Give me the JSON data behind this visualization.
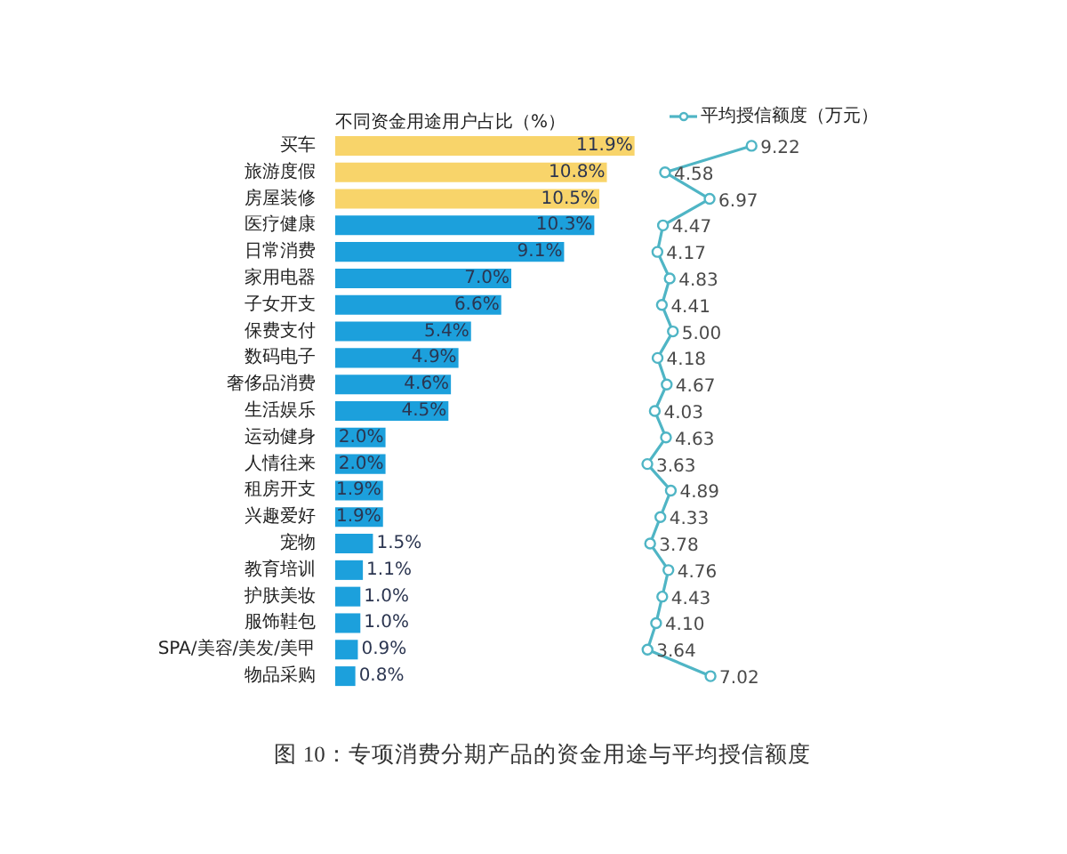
{
  "chart_data": [
    {
      "type": "bar",
      "orientation": "horizontal",
      "title": "不同资金用途用户占比（%）",
      "categories": [
        "买车",
        "旅游度假",
        "房屋装修",
        "医疗健康",
        "日常消费",
        "家用电器",
        "子女开支",
        "保费支付",
        "数码电子",
        "奢侈品消费",
        "生活娱乐",
        "运动健身",
        "人情往来",
        "租房开支",
        "兴趣爱好",
        "宠物",
        "教育培训",
        "护肤美妆",
        "服饰鞋包",
        "SPA/美容/美发/美甲",
        "物品采购"
      ],
      "values": [
        11.9,
        10.8,
        10.5,
        10.3,
        9.1,
        7.0,
        6.6,
        5.4,
        4.9,
        4.6,
        4.5,
        2.0,
        2.0,
        1.9,
        1.9,
        1.5,
        1.1,
        1.0,
        1.0,
        0.9,
        0.8
      ],
      "colors": [
        "#f8d46a",
        "#f8d46a",
        "#f8d46a",
        "#1ca0dc",
        "#1ca0dc",
        "#1ca0dc",
        "#1ca0dc",
        "#1ca0dc",
        "#1ca0dc",
        "#1ca0dc",
        "#1ca0dc",
        "#1ca0dc",
        "#1ca0dc",
        "#1ca0dc",
        "#1ca0dc",
        "#1ca0dc",
        "#1ca0dc",
        "#1ca0dc",
        "#1ca0dc",
        "#1ca0dc",
        "#1ca0dc"
      ],
      "value_labels": [
        "11.9%",
        "10.8%",
        "10.5%",
        "10.3%",
        "9.1%",
        "7.0%",
        "6.6%",
        "5.4%",
        "4.9%",
        "4.6%",
        "4.5%",
        "2.0%",
        "2.0%",
        "1.9%",
        "1.9%",
        "1.5%",
        "1.1%",
        "1.0%",
        "1.0%",
        "0.9%",
        "0.8%"
      ],
      "tick_labels": "y",
      "grid": false,
      "annotations": [
        "图 10：专项消费分期产品的资金用途与平均授信额度"
      ]
    },
    {
      "type": "line",
      "orientation": "horizontal",
      "categories": [
        null,
        null,
        null,
        null,
        null,
        null,
        null,
        null,
        null,
        null,
        null,
        null,
        null,
        null,
        null,
        null,
        null,
        null,
        null,
        null,
        null
      ],
      "tick_labels": false,
      "grid": false,
      "legend": "top",
      "marker": "circle",
      "line_style": "solid",
      "series": [
        {
          "name": "平均授信额度（万元）",
          "color": "#4fb5c5",
          "values": [
            9.22,
            4.58,
            6.97,
            4.47,
            4.17,
            4.83,
            4.41,
            5.0,
            4.18,
            4.67,
            4.03,
            4.63,
            3.63,
            4.89,
            4.33,
            3.78,
            4.76,
            4.43,
            4.1,
            3.64,
            7.02
          ],
          "value_labels": [
            "9.22",
            "4.58",
            "6.97",
            "4.47",
            "4.17",
            "4.83",
            "4.41",
            "5.00",
            "4.18",
            "4.67",
            "4.03",
            "4.63",
            "3.63",
            "4.89",
            "4.33",
            "3.78",
            "4.76",
            "4.43",
            "4.10",
            "3.64",
            "7.02"
          ]
        }
      ]
    }
  ]
}
